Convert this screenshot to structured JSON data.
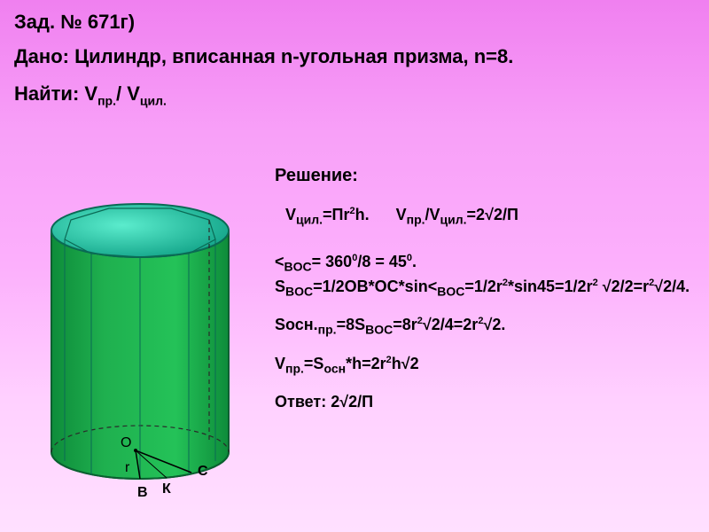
{
  "title": "Зад. № 671г)",
  "given": "Дано: Цилиндр, вписанная n-угольная призма, n=8.",
  "find_prefix": "Найти: V",
  "find_sub1": "пр.",
  "find_mid": "/ V",
  "find_sub2": "цил.",
  "solution": {
    "header": "Решение:",
    "formula1_a": "Vцил.=Пr²h.",
    "formula1_b": "Vпр./Vцил.=2√2/П",
    "line2": "<BOC= 360⁰/8 = 45⁰. SBOC=1/2OB*OC*sin<BOC=1/2r²*sin45=1/2r² √2/2=r²√2/4.",
    "line3": "Sосн.пр.=8SBOC=8r²√2/4=2r²√2.",
    "line4": "Vпр.=Sосн*h=2r²h√2",
    "answer": "Ответ: 2√2/П"
  },
  "diagram": {
    "labels": {
      "O": "О",
      "B": "В",
      "C": "С",
      "K": "К",
      "r": "r"
    },
    "colors": {
      "cylinder_fill": "#1fb04f",
      "cylinder_fill_dark": "#0e8c3a",
      "top_fill": "#26c2a8",
      "top_stroke": "#0a6a55",
      "outline": "#0a6030",
      "dashed": "#2a2a2a"
    }
  }
}
